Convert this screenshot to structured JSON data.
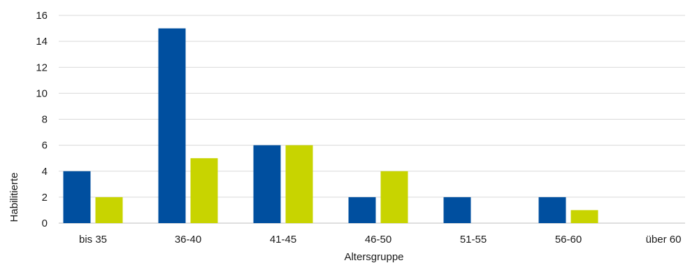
{
  "chart_data": {
    "type": "bar",
    "title": "",
    "xlabel": "Altersgruppe",
    "ylabel": "Habilitierte",
    "categories": [
      "bis 35",
      "36-40",
      "41-45",
      "46-50",
      "51-55",
      "56-60",
      "über 60"
    ],
    "series": [
      {
        "color": "#004f9f",
        "values": [
          4,
          15,
          6,
          2,
          2,
          2,
          0
        ]
      },
      {
        "color": "#c8d400",
        "values": [
          2,
          5,
          6,
          4,
          0,
          1,
          0
        ]
      }
    ],
    "ylim": [
      0,
      16
    ],
    "yticks": [
      0,
      2,
      4,
      6,
      8,
      10,
      12,
      14,
      16
    ],
    "grid": true,
    "legend": "none"
  }
}
